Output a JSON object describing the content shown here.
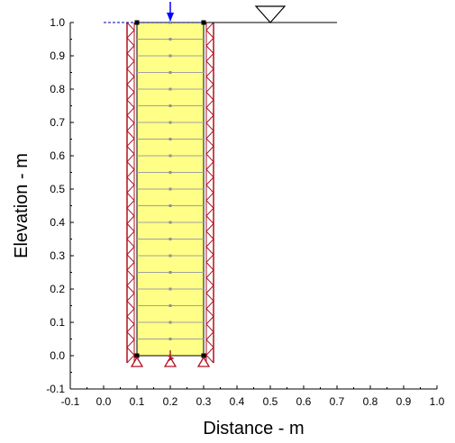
{
  "chart_data": {
    "type": "diagram",
    "xlabel": "Distance - m",
    "ylabel": "Elevation - m",
    "xlim": [
      -0.1,
      1.0
    ],
    "ylim": [
      -0.1,
      1.0
    ],
    "x_ticks": [
      "-0.1",
      "0.0",
      "0.1",
      "0.2",
      "0.3",
      "0.4",
      "0.5",
      "0.6",
      "0.7",
      "0.8",
      "0.9",
      "1.0"
    ],
    "y_ticks": [
      "-0.1",
      "0.0",
      "0.1",
      "0.2",
      "0.3",
      "0.4",
      "0.5",
      "0.6",
      "0.7",
      "0.8",
      "0.9",
      "1.0"
    ],
    "column": {
      "x_left": 0.1,
      "x_right": 0.3,
      "y_bottom": 0.0,
      "y_top": 1.0,
      "fill": "#ffff88",
      "mesh_divisions": 20,
      "mesh_color": "#a0a0a0"
    },
    "boundary_color": "#b01020",
    "load_arrow": {
      "x": 0.2,
      "color": "#0000ff"
    },
    "water_table": {
      "elevation": 1.0,
      "x_start": 0.3,
      "x_end": 0.7,
      "symbol_x": 0.5
    },
    "dashed_top": {
      "x_start": 0.0,
      "x_end": 0.4
    }
  }
}
